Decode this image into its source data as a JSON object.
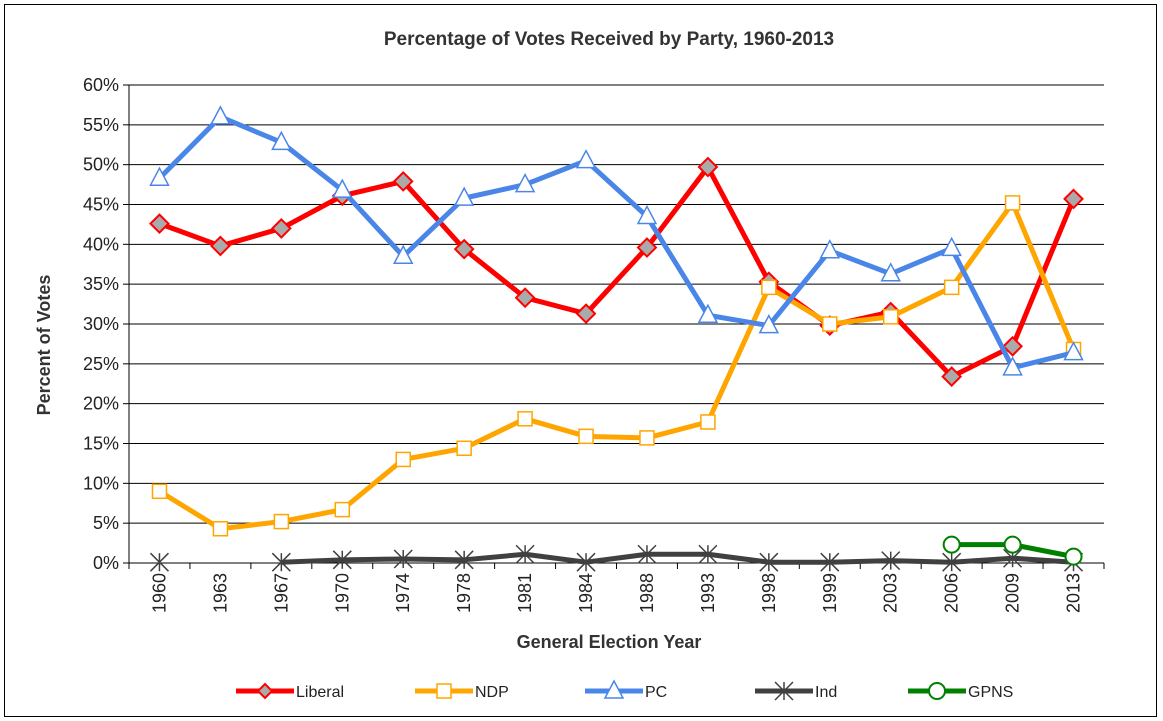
{
  "chart_data": {
    "type": "line",
    "title": "Percentage of Votes Received by Party, 1960-2013",
    "xlabel": "General Election Year",
    "ylabel": "Percent of Votes",
    "categories": [
      "1960",
      "1963",
      "1967",
      "1970",
      "1974",
      "1978",
      "1981",
      "1984",
      "1988",
      "1993",
      "1998",
      "1999",
      "2003",
      "2006",
      "2009",
      "2013"
    ],
    "ylim": [
      0,
      60
    ],
    "y_ticks": [
      "0%",
      "5%",
      "10%",
      "15%",
      "20%",
      "25%",
      "30%",
      "35%",
      "40%",
      "45%",
      "50%",
      "55%",
      "60%"
    ],
    "grid": "horizontal",
    "legend_position": "bottom",
    "series": [
      {
        "name": "Liberal",
        "color": "#ff0000",
        "marker": "diamond",
        "marker_fill": "#aaaaaa",
        "values": [
          42.6,
          39.8,
          42.0,
          46.1,
          47.9,
          39.4,
          33.3,
          31.3,
          39.6,
          49.7,
          35.3,
          29.8,
          31.5,
          23.4,
          27.2,
          45.7
        ]
      },
      {
        "name": "NDP",
        "color": "#ffa500",
        "marker": "square",
        "marker_fill": "#ffffff",
        "values": [
          9.0,
          4.3,
          5.2,
          6.7,
          13.0,
          14.4,
          18.1,
          15.9,
          15.7,
          17.7,
          34.6,
          30.0,
          30.9,
          34.6,
          45.2,
          26.8
        ]
      },
      {
        "name": "PC",
        "color": "#4a86e8",
        "marker": "triangle",
        "marker_fill": "#ffffff",
        "values": [
          48.3,
          56.0,
          52.8,
          46.8,
          38.5,
          45.8,
          47.5,
          50.5,
          43.5,
          31.1,
          29.8,
          39.2,
          36.3,
          39.5,
          24.5,
          26.4
        ]
      },
      {
        "name": "Ind",
        "color": "#404040",
        "marker": "star",
        "marker_fill": "#404040",
        "values": [
          0.1,
          null,
          0.1,
          0.4,
          0.5,
          0.4,
          1.1,
          0.1,
          1.1,
          1.1,
          0.1,
          0.1,
          0.3,
          0.1,
          0.6,
          0.1
        ]
      },
      {
        "name": "GPNS",
        "color": "#008000",
        "marker": "circle",
        "marker_fill": "#ffffff",
        "values": [
          null,
          null,
          null,
          null,
          null,
          null,
          null,
          null,
          null,
          null,
          null,
          null,
          null,
          2.3,
          2.3,
          0.8
        ]
      }
    ]
  }
}
